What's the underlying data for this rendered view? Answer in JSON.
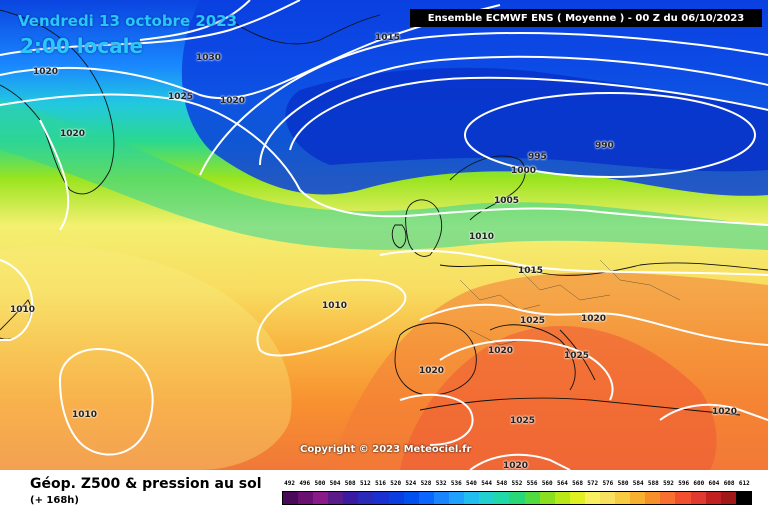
{
  "header": {
    "date": "Vendredi 13 octobre 2023",
    "time": "2:00 locale",
    "run": "Ensemble ECMWF ENS  ( Moyenne )  -  00 Z du 06/10/2023"
  },
  "copyright": "Copyright © 2023 Meteociel.fr",
  "footer": {
    "product": "Géop. Z500 & pression au sol",
    "lead": "(+ 168h)"
  },
  "isobar_labels": [
    "1015",
    "1030",
    "1020",
    "1025",
    "1020",
    "1020",
    "995",
    "990",
    "1000",
    "1005",
    "1010",
    "1015",
    "1010",
    "1010",
    "1025",
    "1020",
    "1020",
    "1025",
    "1020",
    "1010",
    "1025",
    "1020",
    "1020"
  ],
  "legend": {
    "labels": [
      "492",
      "496",
      "500",
      "504",
      "508",
      "512",
      "516",
      "520",
      "524",
      "528",
      "532",
      "536",
      "540",
      "544",
      "548",
      "552",
      "556",
      "560",
      "564",
      "568",
      "572",
      "576",
      "580",
      "584",
      "588",
      "592",
      "596",
      "600",
      "604",
      "608",
      "612"
    ],
    "colors": [
      "#4a0a5a",
      "#6a1070",
      "#8a1a88",
      "#5a1a8a",
      "#3a1aa0",
      "#2a2ab8",
      "#1a30d0",
      "#0a3ee0",
      "#0050f0",
      "#0a66ff",
      "#1a84ff",
      "#20a0ff",
      "#22bdf0",
      "#22d0d0",
      "#20d8a8",
      "#28d878",
      "#50dc40",
      "#88e020",
      "#b8e818",
      "#e0f020",
      "#f8f060",
      "#f8e060",
      "#f8cc40",
      "#f8b030",
      "#f8902a",
      "#f87030",
      "#f05030",
      "#e03a30",
      "#c02020",
      "#a01818",
      "#000000"
    ]
  }
}
